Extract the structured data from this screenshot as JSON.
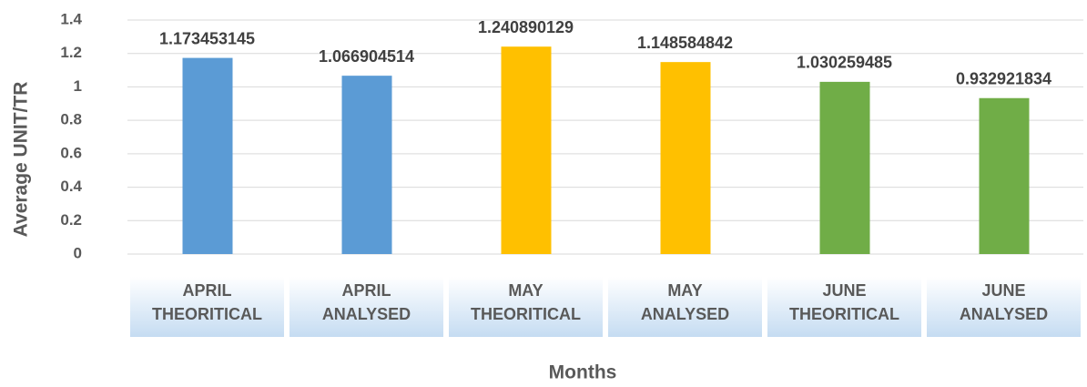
{
  "chart_data": {
    "type": "bar",
    "x_label": "Months",
    "y_label": "Average UNIT/TR",
    "categories": [
      [
        "APRIL",
        "THEORITICAL"
      ],
      [
        "APRIL",
        "ANALYSED"
      ],
      [
        "MAY",
        "THEORITICAL"
      ],
      [
        "MAY",
        "ANALYSED"
      ],
      [
        "JUNE",
        "THEORITICAL"
      ],
      [
        "JUNE",
        "ANALYSED"
      ]
    ],
    "values": [
      1.173453145,
      1.066904514,
      1.240890129,
      1.148584842,
      1.030259485,
      0.932921834
    ],
    "colors": [
      "#5b9bd5",
      "#5b9bd5",
      "#ffc000",
      "#ffc000",
      "#70ad47",
      "#70ad47"
    ],
    "ylim": [
      0,
      1.4
    ],
    "yticks": [
      0,
      0.2,
      0.4,
      0.6,
      0.8,
      1,
      1.2,
      1.4
    ],
    "grid": true
  }
}
